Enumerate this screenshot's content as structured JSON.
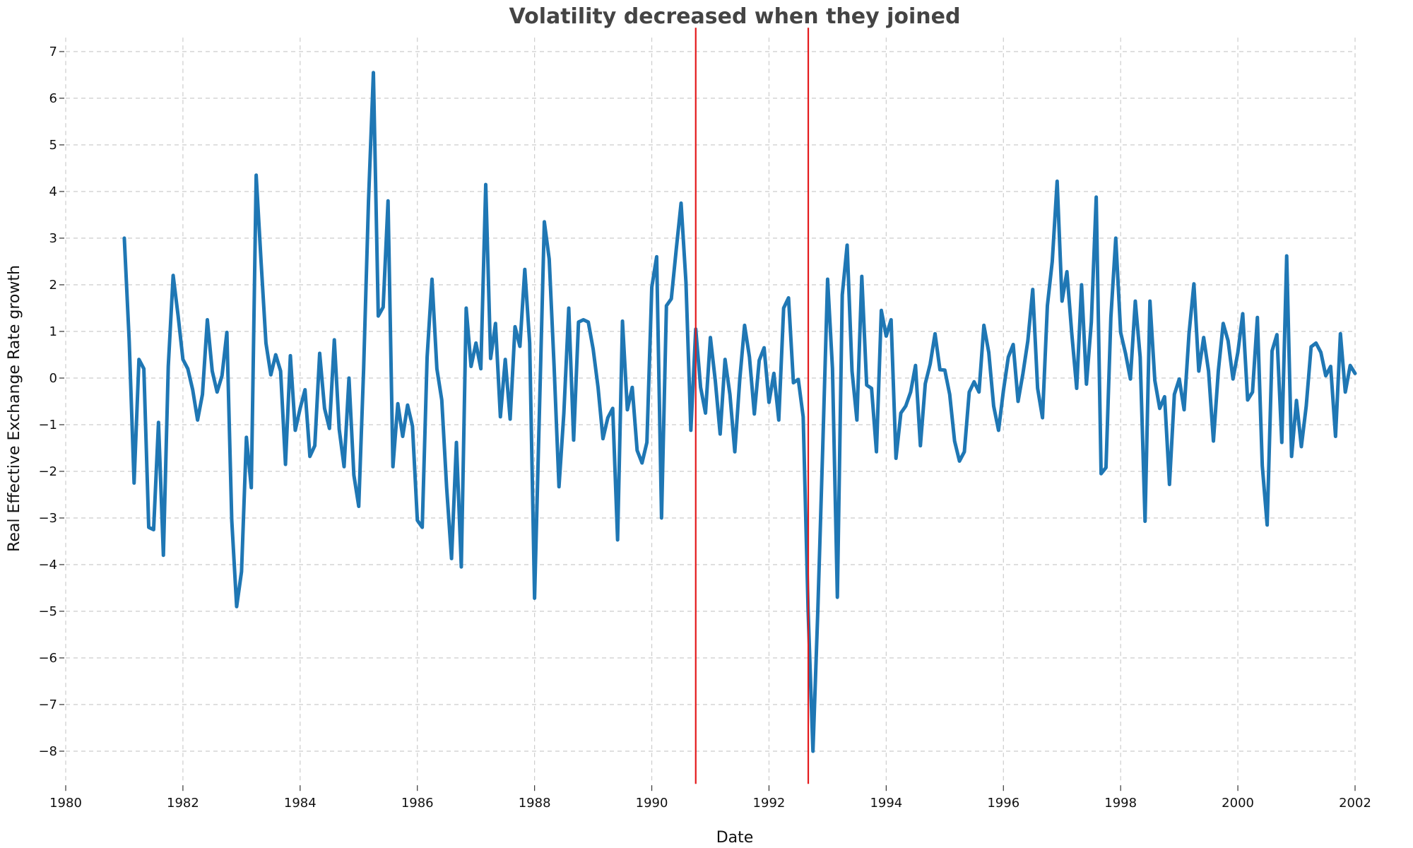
{
  "chart_data": {
    "type": "line",
    "title": "Volatility decreased when they joined",
    "xlabel": "Date",
    "ylabel": "Real Effective Exchange Rate growth",
    "xlim": [
      1980,
      2002
    ],
    "ylim": [
      -8.7,
      7.3
    ],
    "x_ticks": [
      "1980",
      "1982",
      "1984",
      "1986",
      "1988",
      "1990",
      "1992",
      "1994",
      "1996",
      "1998",
      "2000",
      "2002"
    ],
    "y_ticks": [
      "7",
      "6",
      "5",
      "4",
      "3",
      "2",
      "1",
      "0",
      "−1",
      "−2",
      "−3",
      "−4",
      "−5",
      "−6",
      "−7",
      "−8"
    ],
    "grid": true,
    "colors": {
      "series": "#1f77b4",
      "marker": "#e41a1c",
      "grid": "#cccccc"
    },
    "vertical_lines": [
      {
        "x": 1990.75
      },
      {
        "x": 1992.67
      }
    ],
    "series": [
      {
        "x_start": 1981.0,
        "step_months": 1,
        "values": [
          3.0,
          0.8,
          -2.25,
          0.4,
          0.2,
          -3.2,
          -3.25,
          -0.95,
          -3.8,
          0.25,
          2.2,
          1.35,
          0.4,
          0.2,
          -0.25,
          -0.9,
          -0.35,
          1.25,
          0.15,
          -0.3,
          0.05,
          0.98,
          -3.05,
          -4.9,
          -4.15,
          -1.27,
          -2.35,
          4.35,
          2.5,
          0.75,
          0.07,
          0.5,
          0.15,
          -1.85,
          0.48,
          -1.12,
          -0.65,
          -0.25,
          -1.68,
          -1.45,
          0.53,
          -0.65,
          -1.08,
          0.82,
          -1.1,
          -1.9,
          0.0,
          -2.08,
          -2.75,
          0.2,
          3.8,
          6.55,
          1.33,
          1.52,
          3.8,
          -1.9,
          -0.55,
          -1.25,
          -0.58,
          -1.03,
          -3.05,
          -3.2,
          0.45,
          2.12,
          0.2,
          -0.47,
          -2.35,
          -3.87,
          -1.38,
          -4.05,
          1.5,
          0.25,
          0.75,
          0.2,
          4.15,
          0.42,
          1.17,
          -0.83,
          0.4,
          -0.88,
          1.1,
          0.68,
          2.33,
          0.75,
          -4.72,
          -0.7,
          3.35,
          2.55,
          0.25,
          -2.33,
          -0.75,
          1.5,
          -1.33,
          1.2,
          1.25,
          1.2,
          0.62,
          -0.2,
          -1.3,
          -0.85,
          -0.65,
          -3.47,
          1.22,
          -0.68,
          -0.2,
          -1.55,
          -1.82,
          -1.38,
          1.95,
          2.6,
          -3.0,
          1.55,
          1.7,
          2.75,
          3.75,
          2.05,
          -1.12,
          1.05,
          -0.2,
          -0.75,
          0.87,
          -0.05,
          -1.2,
          0.4,
          -0.35,
          -1.58,
          -0.05,
          1.13,
          0.45,
          -0.77,
          0.38,
          0.65,
          -0.52,
          0.1,
          -0.9,
          1.5,
          1.72,
          -0.1,
          -0.03,
          -0.83,
          -4.95,
          -8.0,
          -4.98,
          -1.5,
          2.12,
          0.2,
          -4.7,
          1.78,
          2.85,
          0.15,
          -0.9,
          2.18,
          -0.15,
          -0.22,
          -1.58,
          1.45,
          0.9,
          1.25,
          -1.72,
          -0.75,
          -0.6,
          -0.3,
          0.27,
          -1.45,
          -0.12,
          0.3,
          0.95,
          0.18,
          0.17,
          -0.35,
          -1.35,
          -1.78,
          -1.58,
          -0.3,
          -0.08,
          -0.3,
          1.13,
          0.55,
          -0.6,
          -1.12,
          -0.27,
          0.45,
          0.72,
          -0.5,
          0.1,
          0.8,
          1.9,
          -0.22,
          -0.85,
          1.55,
          2.5,
          4.22,
          1.65,
          2.28,
          0.95,
          -0.22,
          2.0,
          -0.13,
          1.2,
          3.88,
          -2.05,
          -1.92,
          1.3,
          3.0,
          0.98,
          0.53,
          -0.02,
          1.65,
          0.45,
          -3.07,
          1.65,
          -0.05,
          -0.65,
          -0.4,
          -2.28,
          -0.35,
          -0.02,
          -0.68,
          0.95,
          2.02,
          0.15,
          0.87,
          0.15,
          -1.35,
          0.15,
          1.17,
          0.8,
          -0.02,
          0.55,
          1.38,
          -0.47,
          -0.3,
          1.3,
          -1.88,
          -3.15,
          0.58,
          0.93,
          -1.38,
          2.62,
          -1.68,
          -0.48,
          -1.47,
          -0.6,
          0.67,
          0.75,
          0.55,
          0.05,
          0.25,
          -1.25,
          0.95,
          -0.3,
          0.27,
          0.1
        ]
      }
    ]
  }
}
